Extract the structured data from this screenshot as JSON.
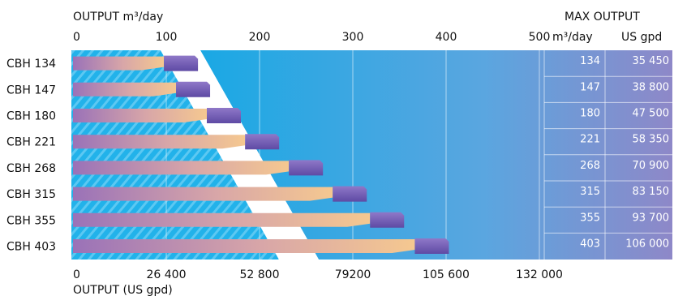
{
  "chart_data": {
    "type": "bar",
    "top_axis_label": "OUTPUT m³/day",
    "bottom_axis_label": "OUTPUT (US gpd)",
    "top_ticks": [
      "0",
      "100",
      "200",
      "300",
      "400",
      "500"
    ],
    "top_tick_values": [
      0,
      100,
      200,
      300,
      400,
      500
    ],
    "bottom_ticks": [
      "0",
      "26 400",
      "52 800",
      "79200",
      "105 600",
      "132 000"
    ],
    "bottom_tick_values": [
      0,
      100,
      200,
      300,
      400,
      500
    ],
    "xlim": [
      0,
      500
    ],
    "categories": [
      "CBH 134",
      "CBH 147",
      "CBH 180",
      "CBH 221",
      "CBH 268",
      "CBH 315",
      "CBH 355",
      "CBH 403"
    ],
    "values": [
      134,
      147,
      180,
      221,
      268,
      315,
      355,
      403
    ],
    "table": {
      "title": "MAX OUTPUT",
      "col1_header": "m³/day",
      "col2_header": "US gpd",
      "m3_day": [
        "134",
        "147",
        "180",
        "221",
        "268",
        "315",
        "355",
        "403"
      ],
      "us_gpd": [
        "35 450",
        "38 800",
        "47 500",
        "58 350",
        "70 900",
        "83 150",
        "93 700",
        "106 000"
      ]
    },
    "colors": {
      "background_left": "#1aa8e4",
      "background_right": "#8e88c8",
      "bar_start": "#9a72b8",
      "bar_end": "#f5c890",
      "cap": "#7a58b4"
    }
  }
}
